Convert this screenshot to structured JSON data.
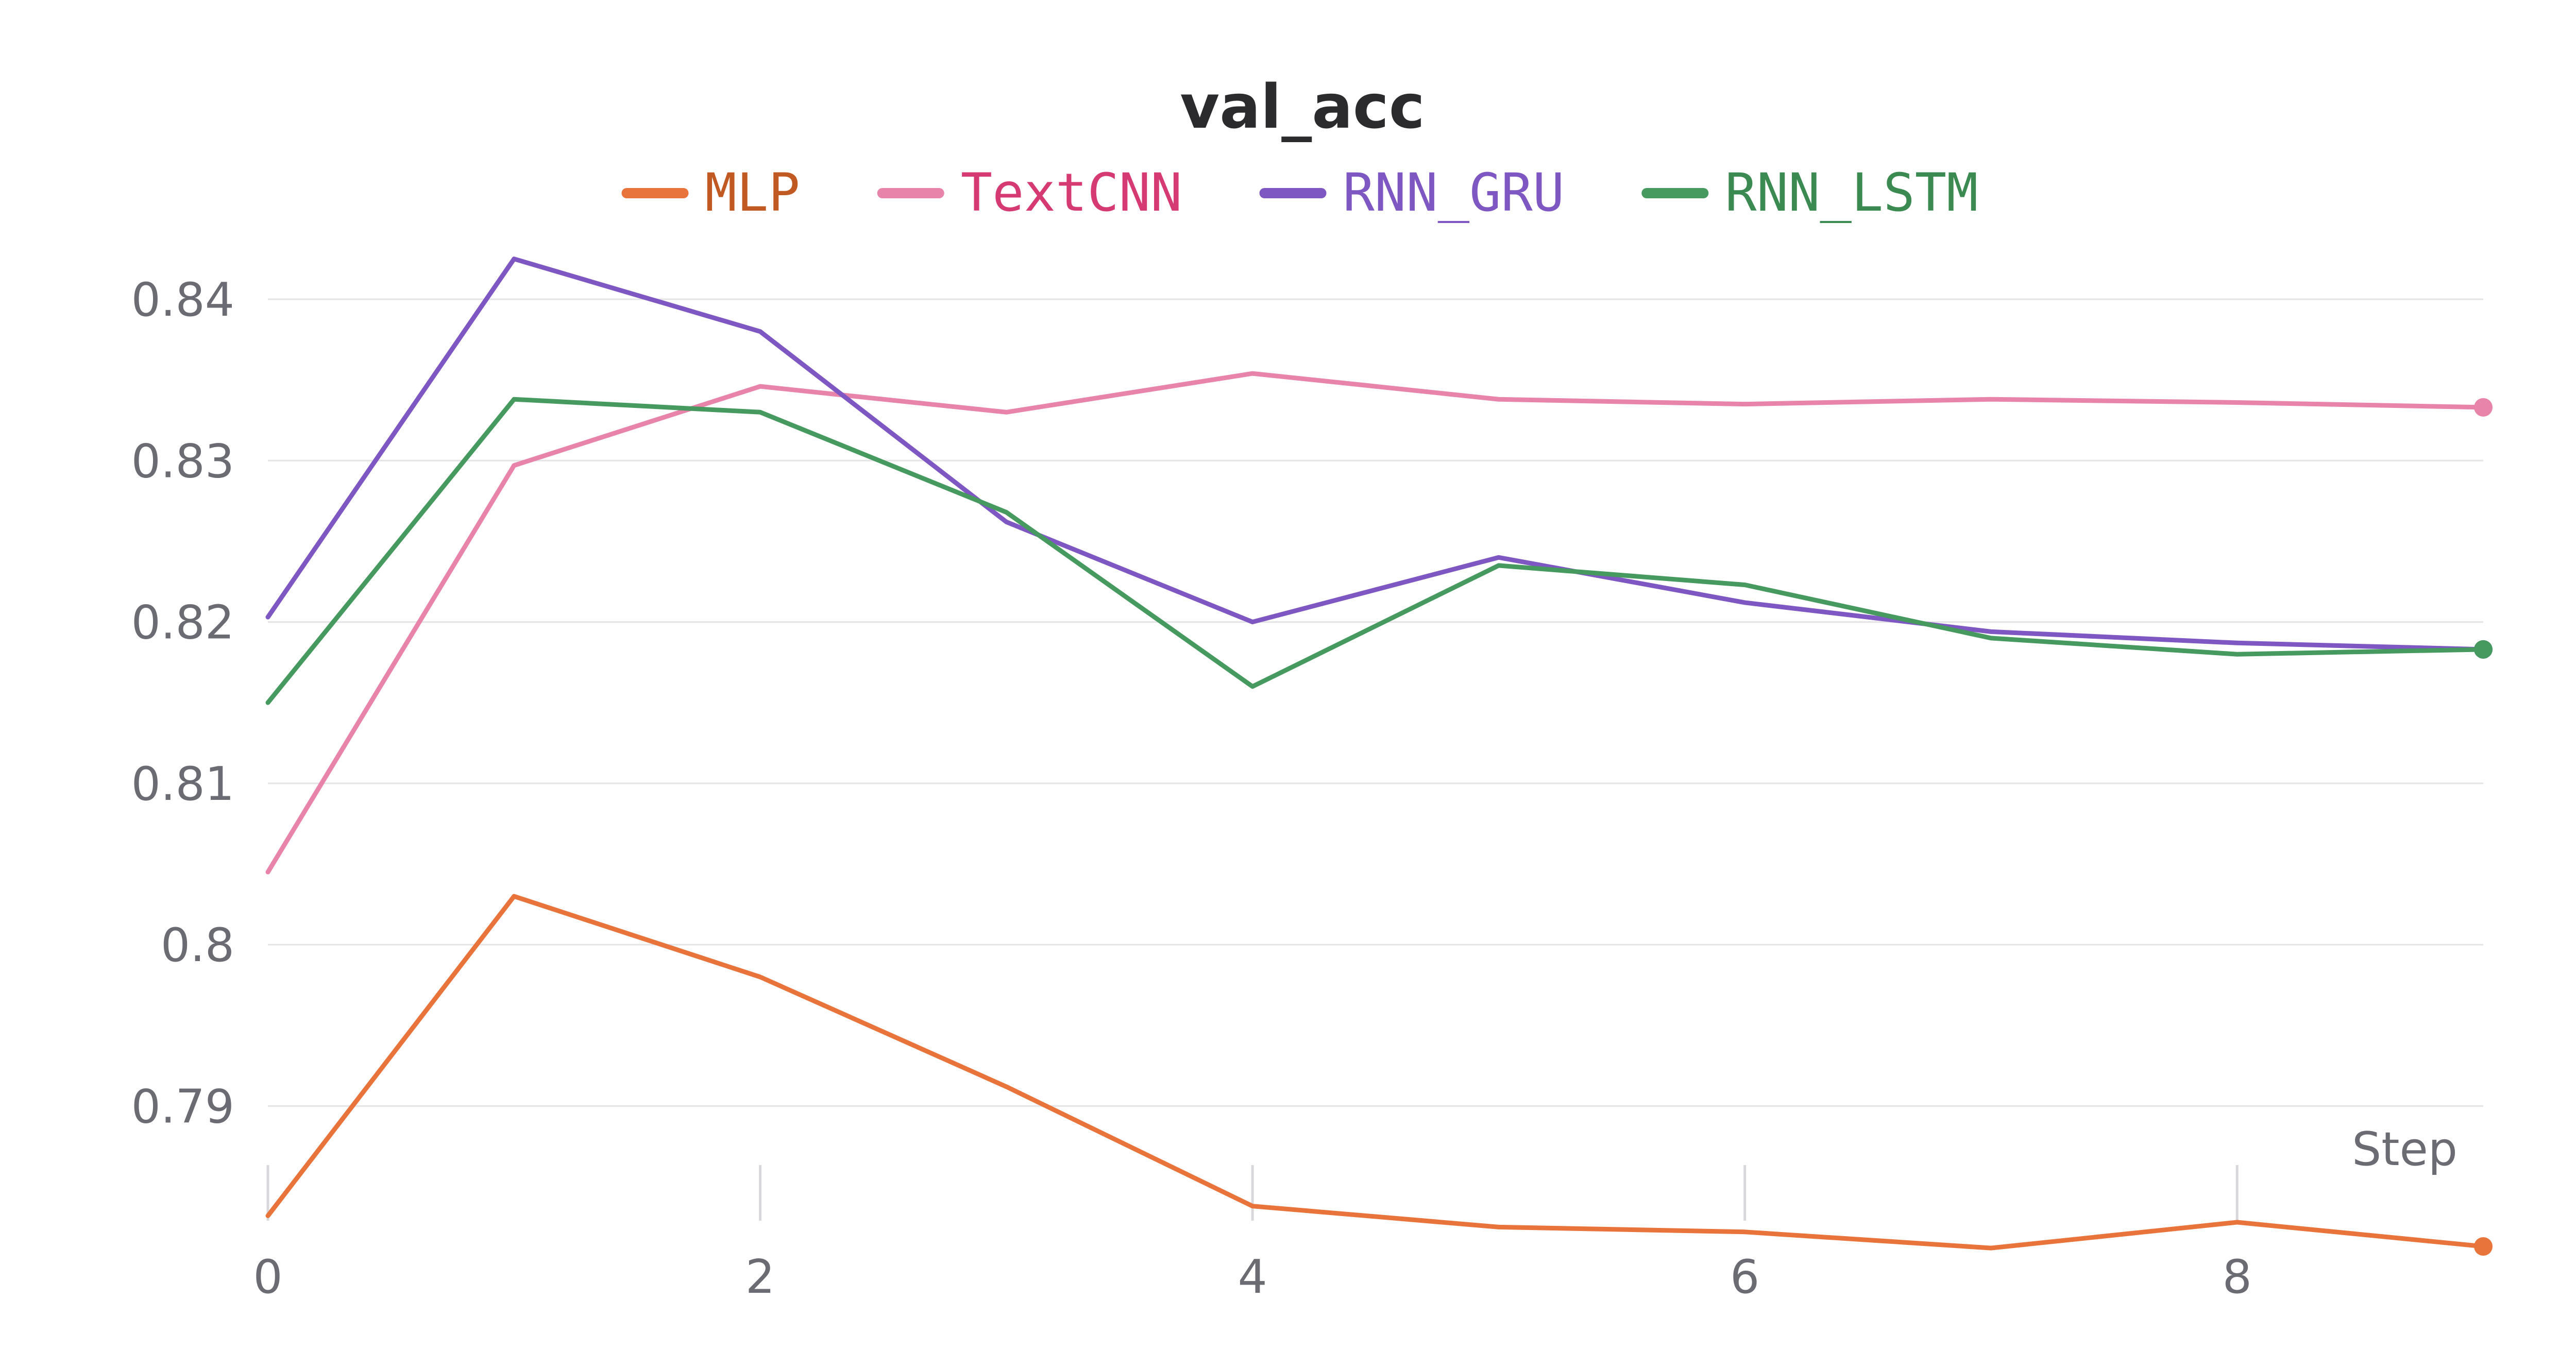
{
  "chart_data": {
    "type": "line",
    "title": "val_acc",
    "xlabel": "Step",
    "ylabel": "",
    "x": [
      0,
      1,
      2,
      3,
      4,
      5,
      6,
      7,
      8,
      9
    ],
    "xlim": [
      0,
      9
    ],
    "ylim": [
      0.7813,
      0.8445
    ],
    "x_ticks": [
      0,
      2,
      4,
      6,
      8
    ],
    "y_ticks": [
      0.79,
      0.8,
      0.81,
      0.82,
      0.83,
      0.84
    ],
    "y_tick_labels": [
      "0.79",
      "0.8",
      "0.81",
      "0.82",
      "0.83",
      "0.84"
    ],
    "grid": true,
    "legend_position": "top",
    "series": [
      {
        "name": "MLP",
        "color": "#e8743b",
        "text_color": "#c15a22",
        "values": [
          0.7832,
          0.803,
          0.798,
          0.7912,
          0.7838,
          0.7825,
          0.7822,
          0.7812,
          0.7828,
          0.7813
        ]
      },
      {
        "name": "TextCNN",
        "color": "#e884aa",
        "text_color": "#d63a72",
        "values": [
          0.8045,
          0.8297,
          0.8346,
          0.833,
          0.8354,
          0.8338,
          0.8335,
          0.8338,
          0.8336,
          0.8333
        ]
      },
      {
        "name": "RNN_GRU",
        "color": "#7e57c2",
        "text_color": "#7e57c2",
        "values": [
          0.8203,
          0.8425,
          0.838,
          0.8262,
          0.82,
          0.824,
          0.8212,
          0.8194,
          0.8187,
          0.8183
        ]
      },
      {
        "name": "RNN_LSTM",
        "color": "#479a5f",
        "text_color": "#3b8a51",
        "values": [
          0.815,
          0.8338,
          0.833,
          0.8268,
          0.816,
          0.8235,
          0.8223,
          0.819,
          0.818,
          0.8183
        ]
      }
    ]
  }
}
